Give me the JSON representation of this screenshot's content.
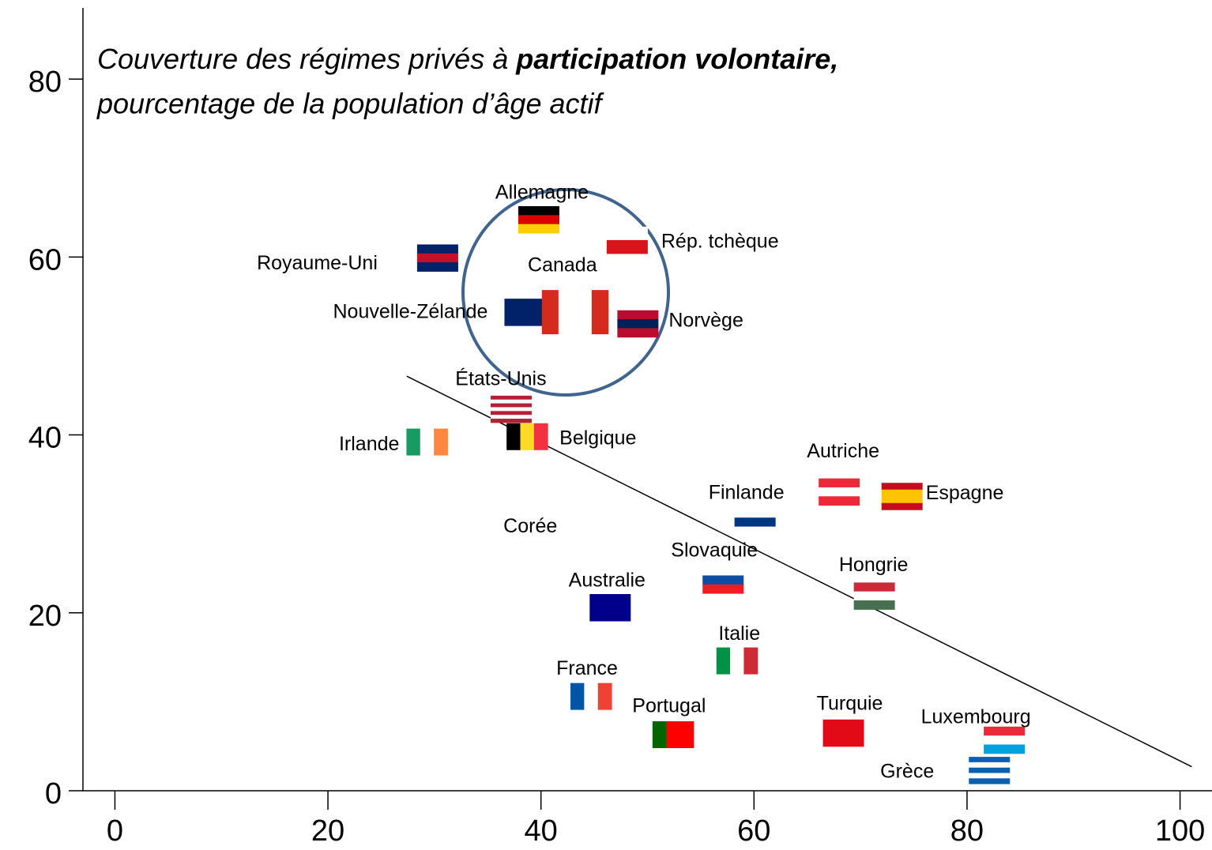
{
  "chart_data": {
    "type": "scatter",
    "title": {
      "line1": "Couverture des régimes privés à ",
      "line1_bold": "participation volontaire,",
      "line2": "pourcentage de la population d’âge actif"
    },
    "categories": [
      "Allemagne",
      "Rép. tchèque",
      "Royaume-Uni",
      "Nouvelle-Zélande",
      "Canada",
      "Norvège",
      "États-Unis",
      "Belgique",
      "Irlande",
      "Autriche",
      "Espagne",
      "Finlande",
      "Corée",
      "Slovaquie",
      "Hongrie",
      "Australie",
      "Italie",
      "France",
      "Portugal",
      "Turquie",
      "Luxembourg",
      "Grèce"
    ],
    "x": [
      39.8,
      48.1,
      30.3,
      38.5,
      43.2,
      49.1,
      37.2,
      38.7,
      29.3,
      68.0,
      73.9,
      60.1,
      39.0,
      57.1,
      71.3,
      46.5,
      58.4,
      44.7,
      52.4,
      68.4,
      83.5,
      82.1
    ],
    "values": [
      64.2,
      61.9,
      59.9,
      53.8,
      53.8,
      52.5,
      42.9,
      39.8,
      39.2,
      33.6,
      33.1,
      30.2,
      26.5,
      23.7,
      21.9,
      20.6,
      14.6,
      10.6,
      6.3,
      6.5,
      5.7,
      2.3
    ],
    "flag_stripes": [
      "h",
      "h",
      "h",
      "h",
      "v",
      "h",
      "h",
      "v",
      "v",
      "h",
      "h",
      "h",
      "h",
      "h",
      "h",
      "h",
      "v",
      "v",
      "v",
      "h",
      "h",
      "h"
    ],
    "flag_colors": [
      [
        "#000000",
        "#dd0000",
        "#ffce00"
      ],
      [
        "#ffffff",
        "#d7141a"
      ],
      [
        "#012169",
        "#c8102e",
        "#012169"
      ],
      [
        "#012169"
      ],
      [
        "#d52b1e",
        "#ffffff",
        "#ffffff",
        "#d52b1e"
      ],
      [
        "#ba0c2f",
        "#00205b",
        "#ba0c2f"
      ],
      [
        "#b22234",
        "#ffffff",
        "#b22234",
        "#ffffff",
        "#b22234",
        "#ffffff",
        "#b22234"
      ],
      [
        "#000000",
        "#fdda24",
        "#ef3340"
      ],
      [
        "#169b62",
        "#ffffff",
        "#ff883e"
      ],
      [
        "#ed2939",
        "#ffffff",
        "#ed2939"
      ],
      [
        "#c60b1e",
        "#ffc400",
        "#ffc400",
        "#c60b1e"
      ],
      [
        "#ffffff",
        "#003580",
        "#ffffff"
      ],
      [
        "#ffffff"
      ],
      [
        "#ffffff",
        "#0b4ea2",
        "#ee1c25"
      ],
      [
        "#ce2939",
        "#ffffff",
        "#477050"
      ],
      [
        "#00008b"
      ],
      [
        "#009246",
        "#ffffff",
        "#ce2b37"
      ],
      [
        "#0055a4",
        "#ffffff",
        "#ef4135"
      ],
      [
        "#006600",
        "#ff0000",
        "#ff0000"
      ],
      [
        "#e30a17"
      ],
      [
        "#ed2939",
        "#ffffff",
        "#00a1de"
      ],
      [
        "#0d5eaf",
        "#ffffff",
        "#0d5eaf",
        "#ffffff",
        "#0d5eaf"
      ]
    ],
    "trend": {
      "x": [
        27.4,
        101.1
      ],
      "y": [
        46.6,
        2.7
      ]
    },
    "xlim": [
      -3,
      103
    ],
    "ylim": [
      0,
      88
    ],
    "xticks": [
      0,
      20,
      40,
      60,
      80,
      100
    ],
    "yticks": [
      0,
      20,
      40,
      60,
      80
    ]
  }
}
